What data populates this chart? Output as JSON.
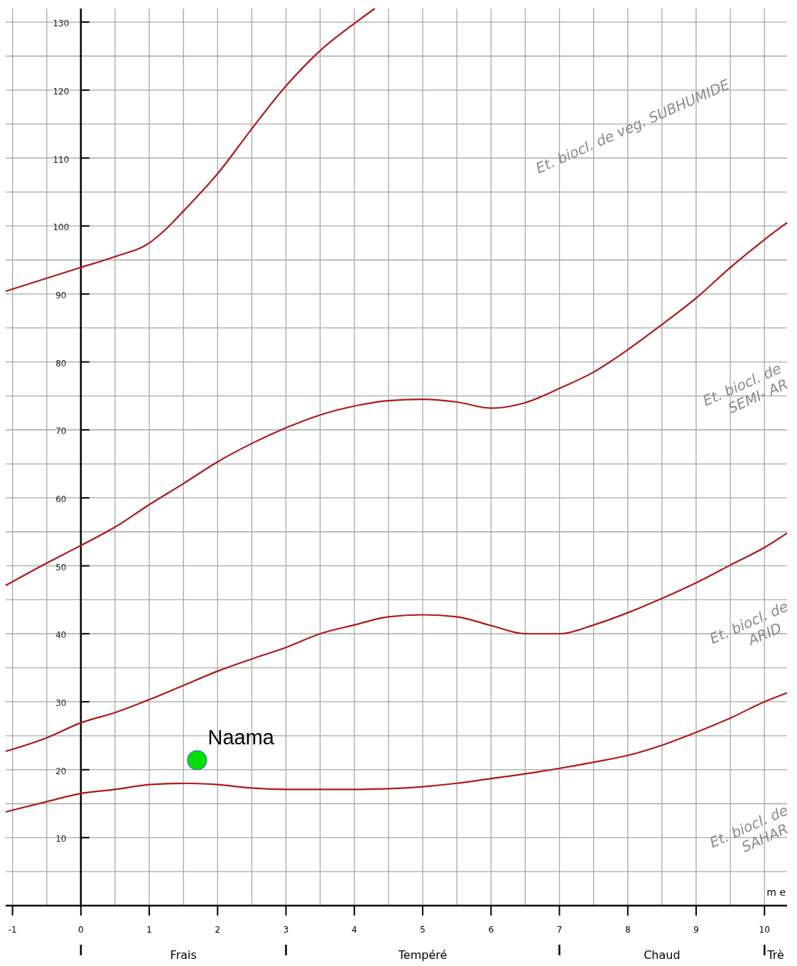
{
  "chart_data": {
    "type": "line",
    "xlabel": "m e",
    "xlim": [
      -1.1,
      10.33
    ],
    "ylim": [
      0,
      132
    ],
    "xticks": [
      -1,
      0,
      1,
      2,
      3,
      4,
      5,
      6,
      7,
      8,
      9,
      10
    ],
    "yticks": [
      {
        "value": 0,
        "label": null
      },
      10,
      20,
      30,
      40,
      50,
      60,
      70,
      80,
      90,
      100,
      110,
      120,
      130
    ],
    "grid": true,
    "marker": "none",
    "line_style": "solid",
    "series": [
      {
        "color": "#b01818",
        "x": [
          -1.1,
          0,
          0.5,
          1,
          1.25,
          1.5,
          2,
          2.5,
          3,
          3.5,
          4,
          4.3
        ],
        "values": [
          90.4,
          93.9,
          95.5,
          97.5,
          99.6,
          102.2,
          107.7,
          114.3,
          120.6,
          125.8,
          129.8,
          132
        ]
      },
      {
        "color": "#b01818",
        "x": [
          -1.1,
          -0.5,
          0,
          0.5,
          1,
          1.5,
          2,
          2.5,
          3,
          3.5,
          4,
          4.5,
          5,
          5.5,
          6,
          6.5,
          7,
          7.5,
          8,
          8.5,
          9,
          9.5,
          10,
          10.33
        ],
        "values": [
          47.1,
          50.4,
          53,
          55.7,
          59,
          62.1,
          65.3,
          68,
          70.3,
          72.2,
          73.5,
          74.3,
          74.5,
          74.1,
          73.2,
          74,
          76.1,
          78.5,
          81.8,
          85.5,
          89.4,
          93.9,
          98,
          100.5
        ]
      },
      {
        "color": "#b01818",
        "x": [
          -1.1,
          -0.5,
          0,
          0.5,
          1,
          1.5,
          2,
          2.5,
          3,
          3.5,
          4,
          4.5,
          5,
          5.5,
          6,
          6.5,
          7,
          7.5,
          8,
          8.5,
          9,
          9.5,
          10,
          10.33
        ],
        "values": [
          22.7,
          24.7,
          26.9,
          28.4,
          30.3,
          32.4,
          34.5,
          36.3,
          38,
          40,
          41.3,
          42.5,
          42.8,
          42.5,
          41.2,
          40,
          40,
          41.3,
          43.1,
          45.2,
          47.5,
          50.1,
          52.7,
          54.8
        ]
      },
      {
        "color": "#b01818",
        "x": [
          -1.1,
          -0.5,
          0,
          0.5,
          1,
          1.5,
          2,
          2.5,
          3,
          3.5,
          4,
          4.5,
          5,
          5.5,
          6,
          6.5,
          7,
          7.5,
          8,
          8.5,
          9,
          9.5,
          10,
          10.33
        ],
        "values": [
          13.8,
          15.3,
          16.5,
          17.1,
          17.8,
          18,
          17.8,
          17.3,
          17.1,
          17.1,
          17.1,
          17.2,
          17.5,
          18,
          18.7,
          19.4,
          20.2,
          21.1,
          22.1,
          23.6,
          25.5,
          27.6,
          30,
          31.3
        ]
      },
      {
        "type": "scatter",
        "name": "Naama",
        "color": "#00e000",
        "marker": "circle",
        "x": [
          1.7
        ],
        "values": [
          21.4
        ]
      }
    ],
    "annotations": [
      "Et. biocl. de veg. SUBHUMIDE",
      "Et. biocl. de\nSEMI- AR",
      "Et. biocl. de\nARID",
      "Et. biocl. de\nSAHAR",
      "Frais",
      "Tempéré",
      "Chaud",
      "Trè"
    ]
  }
}
